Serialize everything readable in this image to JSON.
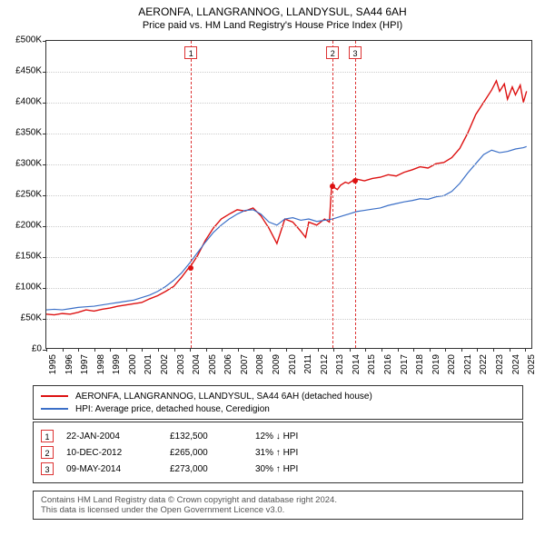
{
  "title": "AERONFA, LLANGRANNOG, LLANDYSUL, SA44 6AH",
  "subtitle": "Price paid vs. HM Land Registry's House Price Index (HPI)",
  "chart": {
    "type": "line",
    "background_color": "#ffffff",
    "grid_color": "#cccccc",
    "border_color": "#333333",
    "title_fontsize": 12,
    "label_fontsize": 10,
    "x": {
      "min": 1995,
      "max": 2025.5,
      "ticks": [
        1995,
        1996,
        1997,
        1998,
        1999,
        2000,
        2001,
        2002,
        2003,
        2004,
        2005,
        2006,
        2007,
        2008,
        2009,
        2010,
        2011,
        2012,
        2013,
        2014,
        2015,
        2016,
        2017,
        2018,
        2019,
        2020,
        2021,
        2022,
        2023,
        2024,
        2025
      ]
    },
    "y": {
      "min": 0,
      "max": 500000,
      "prefix": "£",
      "suffix": "K",
      "ticks": [
        0,
        50000,
        100000,
        150000,
        200000,
        250000,
        300000,
        350000,
        400000,
        450000,
        500000
      ]
    },
    "series": [
      {
        "name": "AERONFA, LLANGRANNOG, LLANDYSUL, SA44 6AH (detached house)",
        "color": "#dd1111",
        "line_width": 1.4,
        "data": [
          [
            1995.0,
            55000
          ],
          [
            1995.5,
            54000
          ],
          [
            1996.0,
            56000
          ],
          [
            1996.5,
            55000
          ],
          [
            1997.0,
            58000
          ],
          [
            1997.5,
            62000
          ],
          [
            1998.0,
            60000
          ],
          [
            1998.5,
            63000
          ],
          [
            1999.0,
            65000
          ],
          [
            1999.5,
            68000
          ],
          [
            2000.0,
            70000
          ],
          [
            2000.5,
            72000
          ],
          [
            2001.0,
            74000
          ],
          [
            2001.5,
            80000
          ],
          [
            2002.0,
            85000
          ],
          [
            2002.5,
            92000
          ],
          [
            2003.0,
            100000
          ],
          [
            2003.5,
            115000
          ],
          [
            2004.0,
            132000
          ],
          [
            2004.06,
            132500
          ],
          [
            2004.5,
            150000
          ],
          [
            2005.0,
            175000
          ],
          [
            2005.5,
            195000
          ],
          [
            2006.0,
            210000
          ],
          [
            2006.5,
            218000
          ],
          [
            2007.0,
            225000
          ],
          [
            2007.5,
            223000
          ],
          [
            2008.0,
            228000
          ],
          [
            2008.5,
            215000
          ],
          [
            2009.0,
            195000
          ],
          [
            2009.5,
            170000
          ],
          [
            2010.0,
            210000
          ],
          [
            2010.5,
            205000
          ],
          [
            2011.0,
            190000
          ],
          [
            2011.3,
            180000
          ],
          [
            2011.5,
            205000
          ],
          [
            2012.0,
            200000
          ],
          [
            2012.5,
            210000
          ],
          [
            2012.8,
            205000
          ],
          [
            2012.94,
            265000
          ],
          [
            2013.0,
            263000
          ],
          [
            2013.3,
            258000
          ],
          [
            2013.5,
            265000
          ],
          [
            2013.8,
            270000
          ],
          [
            2014.0,
            268000
          ],
          [
            2014.3,
            273000
          ],
          [
            2014.35,
            273000
          ],
          [
            2014.5,
            275000
          ],
          [
            2015.0,
            272000
          ],
          [
            2015.5,
            276000
          ],
          [
            2016.0,
            278000
          ],
          [
            2016.5,
            282000
          ],
          [
            2017.0,
            280000
          ],
          [
            2017.5,
            286000
          ],
          [
            2018.0,
            290000
          ],
          [
            2018.5,
            295000
          ],
          [
            2019.0,
            293000
          ],
          [
            2019.5,
            300000
          ],
          [
            2020.0,
            302000
          ],
          [
            2020.5,
            310000
          ],
          [
            2021.0,
            325000
          ],
          [
            2021.5,
            350000
          ],
          [
            2022.0,
            380000
          ],
          [
            2022.5,
            400000
          ],
          [
            2023.0,
            420000
          ],
          [
            2023.3,
            435000
          ],
          [
            2023.5,
            418000
          ],
          [
            2023.8,
            430000
          ],
          [
            2024.0,
            405000
          ],
          [
            2024.3,
            425000
          ],
          [
            2024.5,
            412000
          ],
          [
            2024.8,
            428000
          ],
          [
            2025.0,
            400000
          ],
          [
            2025.2,
            418000
          ]
        ]
      },
      {
        "name": "HPI: Average price, detached house, Ceredigion",
        "color": "#3b6fc7",
        "line_width": 1.2,
        "data": [
          [
            1995.0,
            62000
          ],
          [
            1995.5,
            63000
          ],
          [
            1996.0,
            62000
          ],
          [
            1996.5,
            64000
          ],
          [
            1997.0,
            66000
          ],
          [
            1997.5,
            67000
          ],
          [
            1998.0,
            68000
          ],
          [
            1998.5,
            70000
          ],
          [
            1999.0,
            72000
          ],
          [
            1999.5,
            74000
          ],
          [
            2000.0,
            76000
          ],
          [
            2000.5,
            78000
          ],
          [
            2001.0,
            82000
          ],
          [
            2001.5,
            86000
          ],
          [
            2002.0,
            92000
          ],
          [
            2002.5,
            100000
          ],
          [
            2003.0,
            110000
          ],
          [
            2003.5,
            122000
          ],
          [
            2004.0,
            138000
          ],
          [
            2004.5,
            155000
          ],
          [
            2005.0,
            172000
          ],
          [
            2005.5,
            188000
          ],
          [
            2006.0,
            200000
          ],
          [
            2006.5,
            210000
          ],
          [
            2007.0,
            218000
          ],
          [
            2007.5,
            224000
          ],
          [
            2008.0,
            225000
          ],
          [
            2008.5,
            218000
          ],
          [
            2009.0,
            205000
          ],
          [
            2009.5,
            200000
          ],
          [
            2010.0,
            210000
          ],
          [
            2010.5,
            212000
          ],
          [
            2011.0,
            208000
          ],
          [
            2011.5,
            210000
          ],
          [
            2012.0,
            206000
          ],
          [
            2012.5,
            208000
          ],
          [
            2013.0,
            210000
          ],
          [
            2013.5,
            214000
          ],
          [
            2014.0,
            218000
          ],
          [
            2014.5,
            222000
          ],
          [
            2015.0,
            224000
          ],
          [
            2015.5,
            226000
          ],
          [
            2016.0,
            228000
          ],
          [
            2016.5,
            232000
          ],
          [
            2017.0,
            235000
          ],
          [
            2017.5,
            238000
          ],
          [
            2018.0,
            240000
          ],
          [
            2018.5,
            243000
          ],
          [
            2019.0,
            242000
          ],
          [
            2019.5,
            246000
          ],
          [
            2020.0,
            248000
          ],
          [
            2020.5,
            255000
          ],
          [
            2021.0,
            268000
          ],
          [
            2021.5,
            285000
          ],
          [
            2022.0,
            300000
          ],
          [
            2022.5,
            315000
          ],
          [
            2023.0,
            322000
          ],
          [
            2023.5,
            318000
          ],
          [
            2024.0,
            320000
          ],
          [
            2024.5,
            324000
          ],
          [
            2025.0,
            326000
          ],
          [
            2025.2,
            328000
          ]
        ]
      }
    ],
    "event_lines": {
      "color": "#dd3333",
      "dash": "4,3",
      "marker_box_border": "#dd3333",
      "marker_box_bg": "#ffffff",
      "points_fill": "#dd1111",
      "items": [
        {
          "n": "1",
          "x": 2004.06,
          "y": 132500
        },
        {
          "n": "2",
          "x": 2012.94,
          "y": 265000
        },
        {
          "n": "3",
          "x": 2014.35,
          "y": 273000
        }
      ]
    }
  },
  "legend": {
    "items": [
      {
        "color": "#dd1111",
        "label": "AERONFA, LLANGRANNOG, LLANDYSUL, SA44 6AH (detached house)"
      },
      {
        "color": "#3b6fc7",
        "label": "HPI: Average price, detached house, Ceredigion"
      }
    ]
  },
  "events_table": {
    "rows": [
      {
        "n": "1",
        "date": "22-JAN-2004",
        "price": "£132,500",
        "diff": "12% ↓ HPI"
      },
      {
        "n": "2",
        "date": "10-DEC-2012",
        "price": "£265,000",
        "diff": "31% ↑ HPI"
      },
      {
        "n": "3",
        "date": "09-MAY-2014",
        "price": "£273,000",
        "diff": "30% ↑ HPI"
      }
    ]
  },
  "footer": {
    "line1": "Contains HM Land Registry data © Crown copyright and database right 2024.",
    "line2": "This data is licensed under the Open Government Licence v3.0."
  }
}
